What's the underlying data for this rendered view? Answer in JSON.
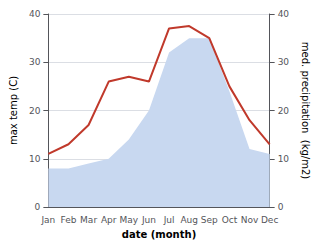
{
  "chart_data": {
    "type": "line",
    "xlabel": "date (month)",
    "ylabel": "max temp (C)",
    "y2label": "med. precipitation  (kg/m2)",
    "categories": [
      "Jan",
      "Feb",
      "Mar",
      "Apr",
      "May",
      "Jun",
      "Jul",
      "Aug",
      "Sep",
      "Oct",
      "Nov",
      "Dec"
    ],
    "series": [
      {
        "type": "area",
        "color": "#c8d8f0",
        "values": [
          8,
          8,
          9,
          10,
          14,
          20,
          32,
          35,
          35,
          24,
          12,
          11
        ]
      },
      {
        "type": "line",
        "color": "#c0392b",
        "axis": "y2",
        "values": [
          11,
          13,
          17,
          26,
          27,
          26,
          37,
          37.5,
          35,
          25,
          18,
          13
        ]
      }
    ],
    "ylim": [
      0,
      40
    ],
    "yticks": [
      0,
      10,
      20,
      30,
      40
    ],
    "y2lim": [
      0,
      40
    ],
    "y2ticks": [
      0,
      10,
      20,
      30,
      40
    ],
    "grid": true
  }
}
